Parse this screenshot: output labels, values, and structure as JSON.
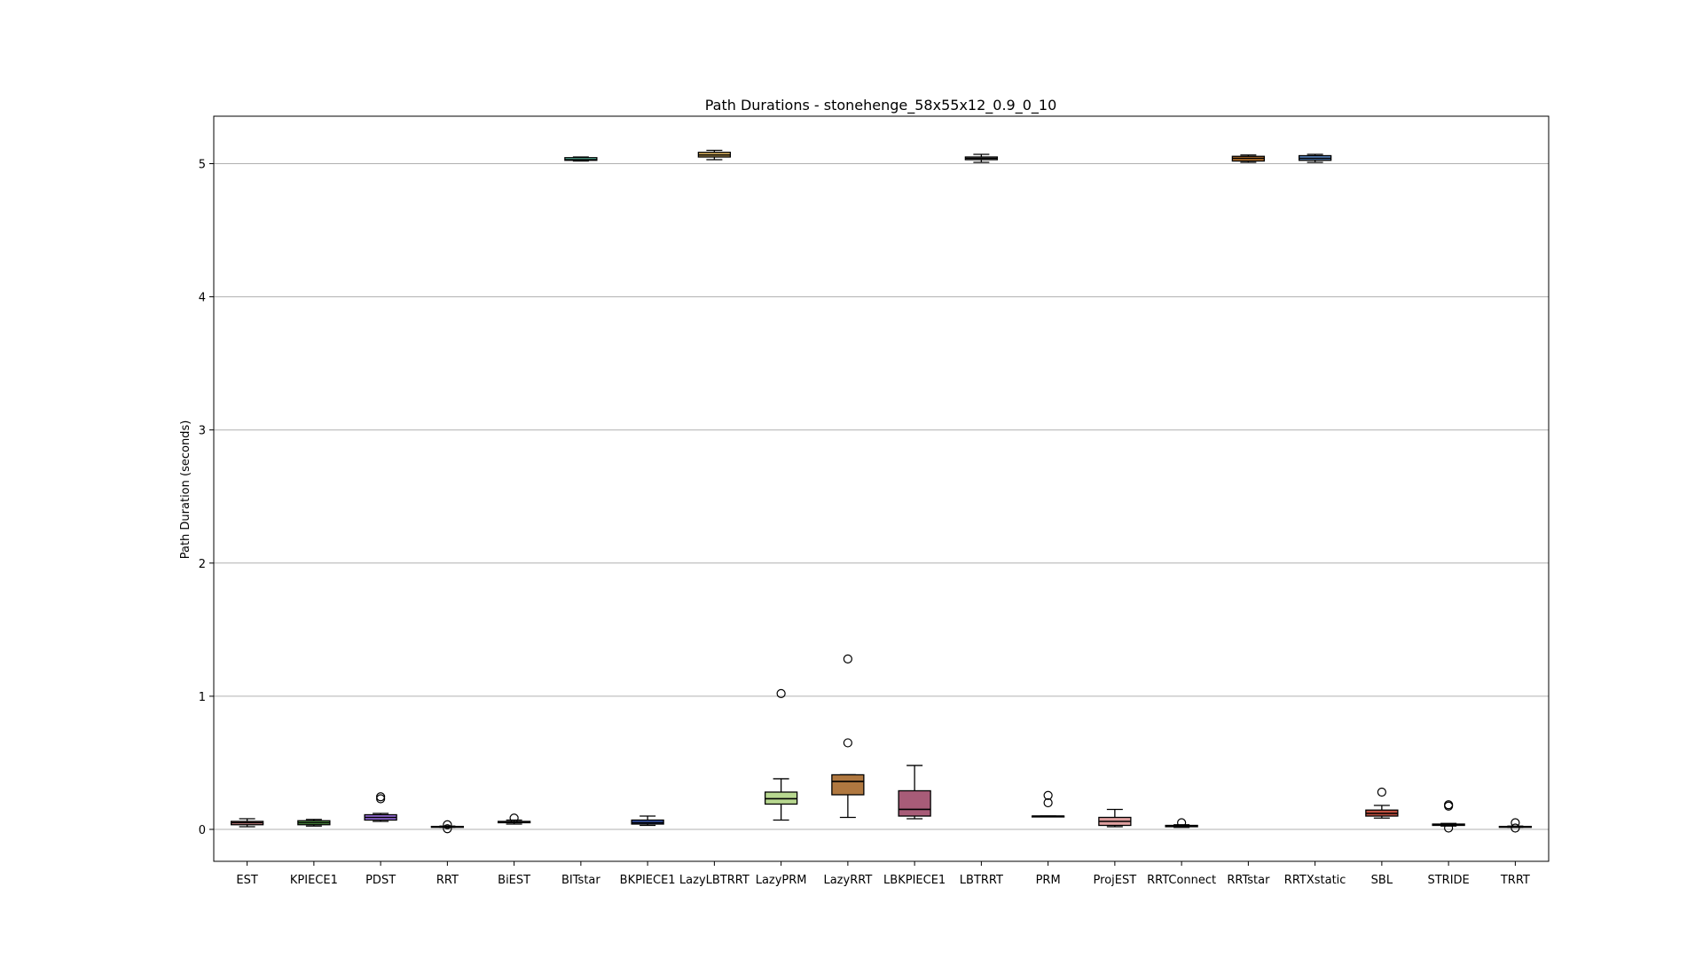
{
  "chart_data": {
    "type": "box",
    "title": "Path Durations - stonehenge_58x55x12_0.9_0_10",
    "xlabel": "",
    "ylabel": "Path Duration (seconds)",
    "ylim": [
      -0.24,
      5.35
    ],
    "yticks": [
      0,
      1,
      2,
      3,
      4,
      5
    ],
    "grid": "horizontal",
    "categories": [
      "EST",
      "KPIECE1",
      "PDST",
      "RRT",
      "BiEST",
      "BITstar",
      "BKPIECE1",
      "LazyLBTRRT",
      "LazyPRM",
      "LazyRRT",
      "LBKPIECE1",
      "LBTRRT",
      "PRM",
      "ProjEST",
      "RRTConnect",
      "RRTstar",
      "RRTXstatic",
      "SBL",
      "STRIDE",
      "TRRT"
    ],
    "boxes": [
      {
        "name": "EST",
        "color": "#d98a8a",
        "whislo": 0.02,
        "q1": 0.035,
        "med": 0.05,
        "q3": 0.06,
        "whishi": 0.08,
        "fliers": []
      },
      {
        "name": "KPIECE1",
        "color": "#5aa64a",
        "whislo": 0.025,
        "q1": 0.035,
        "med": 0.05,
        "q3": 0.065,
        "whishi": 0.075,
        "fliers": []
      },
      {
        "name": "PDST",
        "color": "#9b6fe0",
        "whislo": 0.06,
        "q1": 0.07,
        "med": 0.09,
        "q3": 0.11,
        "whishi": 0.12,
        "fliers": [
          0.23,
          0.245
        ]
      },
      {
        "name": "RRT",
        "color": "#6aa0d6",
        "whislo": 0.015,
        "q1": 0.018,
        "med": 0.02,
        "q3": 0.022,
        "whishi": 0.025,
        "fliers": [
          0.005,
          0.035
        ]
      },
      {
        "name": "BiEST",
        "color": "#8bb8d8",
        "whislo": 0.04,
        "q1": 0.05,
        "med": 0.055,
        "q3": 0.06,
        "whishi": 0.07,
        "fliers": [
          0.085
        ]
      },
      {
        "name": "BITstar",
        "color": "#6fe0c0",
        "whislo": 5.02,
        "q1": 5.025,
        "med": 5.03,
        "q3": 5.045,
        "whishi": 5.05,
        "fliers": []
      },
      {
        "name": "BKPIECE1",
        "color": "#3552a8",
        "whislo": 0.03,
        "q1": 0.04,
        "med": 0.05,
        "q3": 0.07,
        "whishi": 0.1,
        "fliers": []
      },
      {
        "name": "LazyLBTRRT",
        "color": "#d8b060",
        "whislo": 5.03,
        "q1": 5.05,
        "med": 5.065,
        "q3": 5.085,
        "whishi": 5.1,
        "fliers": []
      },
      {
        "name": "LazyPRM",
        "color": "#b8d890",
        "whislo": 0.07,
        "q1": 0.19,
        "med": 0.23,
        "q3": 0.28,
        "whishi": 0.38,
        "fliers": [
          1.02
        ]
      },
      {
        "name": "LazyRRT",
        "color": "#b07840",
        "whislo": 0.09,
        "q1": 0.26,
        "med": 0.36,
        "q3": 0.41,
        "whishi": 0.41,
        "fliers": [
          0.65,
          1.28
        ]
      },
      {
        "name": "LBKPIECE1",
        "color": "#a85c78",
        "whislo": 0.08,
        "q1": 0.1,
        "med": 0.15,
        "q3": 0.29,
        "whishi": 0.48,
        "fliers": []
      },
      {
        "name": "LBTRRT",
        "color": "#c8c8c8",
        "whislo": 5.01,
        "q1": 5.03,
        "med": 5.04,
        "q3": 5.05,
        "whishi": 5.07,
        "fliers": []
      },
      {
        "name": "PRM",
        "color": "#a0a0a0",
        "whislo": 0.1,
        "q1": 0.1,
        "med": 0.1,
        "q3": 0.1,
        "whishi": 0.1,
        "fliers": [
          0.2,
          0.255
        ]
      },
      {
        "name": "ProjEST",
        "color": "#e0a0a0",
        "whislo": 0.02,
        "q1": 0.03,
        "med": 0.06,
        "q3": 0.09,
        "whishi": 0.15,
        "fliers": []
      },
      {
        "name": "RRTConnect",
        "color": "#7ab8b0",
        "whislo": 0.015,
        "q1": 0.02,
        "med": 0.025,
        "q3": 0.03,
        "whishi": 0.035,
        "fliers": [
          0.05
        ]
      },
      {
        "name": "RRTstar",
        "color": "#c07830",
        "whislo": 5.01,
        "q1": 5.02,
        "med": 5.04,
        "q3": 5.055,
        "whishi": 5.065,
        "fliers": []
      },
      {
        "name": "RRTXstatic",
        "color": "#5a86c0",
        "whislo": 5.01,
        "q1": 5.025,
        "med": 5.04,
        "q3": 5.06,
        "whishi": 5.07,
        "fliers": []
      },
      {
        "name": "SBL",
        "color": "#c05040",
        "whislo": 0.085,
        "q1": 0.1,
        "med": 0.12,
        "q3": 0.145,
        "whishi": 0.18,
        "fliers": [
          0.28
        ]
      },
      {
        "name": "STRIDE",
        "color": "#a0a0a0",
        "whislo": 0.025,
        "q1": 0.03,
        "med": 0.035,
        "q3": 0.04,
        "whishi": 0.045,
        "fliers": [
          0.01,
          0.175,
          0.185
        ]
      },
      {
        "name": "TRRT",
        "color": "#7a9ad0",
        "whislo": 0.015,
        "q1": 0.018,
        "med": 0.02,
        "q3": 0.022,
        "whishi": 0.025,
        "fliers": [
          0.01,
          0.05
        ]
      }
    ]
  }
}
